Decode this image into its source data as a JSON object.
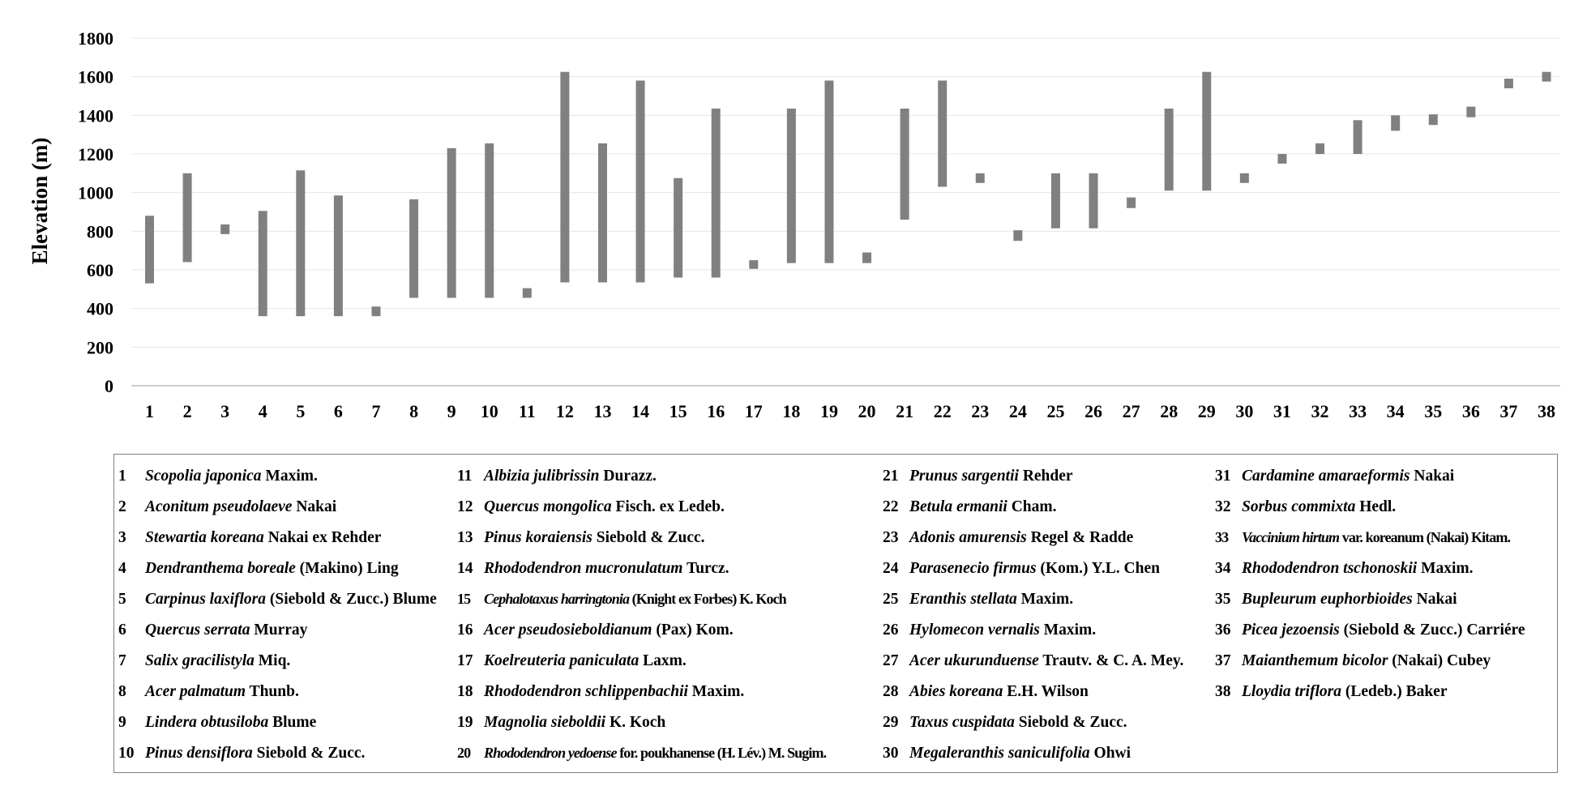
{
  "chart_data": {
    "type": "bar",
    "subtype": "floating-range",
    "ylabel": "Elevation (m)",
    "xlabel": "",
    "title": "",
    "ylim": [
      0,
      1800
    ],
    "yticks": [
      0,
      200,
      400,
      600,
      800,
      1000,
      1200,
      1400,
      1600,
      1800
    ],
    "grid": true,
    "bar_color": "#808080",
    "categories": [
      "1",
      "2",
      "3",
      "4",
      "5",
      "6",
      "7",
      "8",
      "9",
      "10",
      "11",
      "12",
      "13",
      "14",
      "15",
      "16",
      "17",
      "18",
      "19",
      "20",
      "21",
      "22",
      "23",
      "24",
      "25",
      "26",
      "27",
      "28",
      "29",
      "30",
      "31",
      "32",
      "33",
      "34",
      "35",
      "36",
      "37",
      "38"
    ],
    "ranges": [
      [
        530,
        880
      ],
      [
        640,
        1100
      ],
      [
        785,
        835
      ],
      [
        360,
        905
      ],
      [
        360,
        1115
      ],
      [
        360,
        985
      ],
      [
        360,
        410
      ],
      [
        455,
        965
      ],
      [
        455,
        1230
      ],
      [
        455,
        1255
      ],
      [
        455,
        505
      ],
      [
        535,
        1625
      ],
      [
        535,
        1255
      ],
      [
        535,
        1580
      ],
      [
        560,
        1075
      ],
      [
        560,
        1435
      ],
      [
        605,
        650
      ],
      [
        635,
        1435
      ],
      [
        635,
        1580
      ],
      [
        635,
        690
      ],
      [
        860,
        1435
      ],
      [
        1030,
        1580
      ],
      [
        1050,
        1100
      ],
      [
        750,
        805
      ],
      [
        815,
        1100
      ],
      [
        815,
        1100
      ],
      [
        920,
        975
      ],
      [
        1010,
        1435
      ],
      [
        1010,
        1625
      ],
      [
        1050,
        1100
      ],
      [
        1150,
        1200
      ],
      [
        1200,
        1255
      ],
      [
        1200,
        1375
      ],
      [
        1320,
        1400
      ],
      [
        1350,
        1405
      ],
      [
        1390,
        1445
      ],
      [
        1540,
        1590
      ],
      [
        1575,
        1625
      ]
    ]
  },
  "legend": {
    "columns": [
      [
        {
          "num": "1",
          "species": "Scopolia japonica",
          "author": "Maxim."
        },
        {
          "num": "2",
          "species": "Aconitum pseudolaeve",
          "author": "Nakai"
        },
        {
          "num": "3",
          "species": "Stewartia koreana",
          "author": "Nakai ex Rehder"
        },
        {
          "num": "4",
          "species": "Dendranthema boreale",
          "author": "(Makino) Ling"
        },
        {
          "num": "5",
          "species": "Carpinus laxiflora",
          "author": "(Siebold & Zucc.) Blume"
        },
        {
          "num": "6",
          "species": "Quercus serrata",
          "author": "Murray"
        },
        {
          "num": "7",
          "species": "Salix gracilistyla",
          "author": "Miq."
        },
        {
          "num": "8",
          "species": "Acer palmatum",
          "author": "Thunb."
        },
        {
          "num": "9",
          "species": "Lindera obtusiloba",
          "author": "Blume"
        },
        {
          "num": "10",
          "species": "Pinus densiflora",
          "author": "Siebold & Zucc."
        }
      ],
      [
        {
          "num": "11",
          "species": "Albizia julibrissin",
          "author": "Durazz."
        },
        {
          "num": "12",
          "species": "Quercus mongolica",
          "author": "Fisch. ex Ledeb."
        },
        {
          "num": "13",
          "species": "Pinus koraiensis",
          "author": "Siebold & Zucc."
        },
        {
          "num": "14",
          "species": "Rhododendron mucronulatum",
          "author": "Turcz."
        },
        {
          "num": "15",
          "species": "Cephalotaxus harringtonia",
          "author": "(Knight ex Forbes) K. Koch"
        },
        {
          "num": "16",
          "species": "Acer pseudosieboldianum",
          "author": "(Pax) Kom."
        },
        {
          "num": "17",
          "species": "Koelreuteria paniculata",
          "author": "Laxm."
        },
        {
          "num": "18",
          "species": "Rhododendron schlippenbachii",
          "author": "Maxim."
        },
        {
          "num": "19",
          "species": "Magnolia sieboldii",
          "author": "K. Koch"
        },
        {
          "num": "20",
          "species": "Rhododendron yedoense",
          "author": "for. poukhanense (H. Lév.) M. Sugim."
        }
      ],
      [
        {
          "num": "21",
          "species": "Prunus sargentii",
          "author": "Rehder"
        },
        {
          "num": "22",
          "species": "Betula ermanii",
          "author": "Cham."
        },
        {
          "num": "23",
          "species": "Adonis amurensis",
          "author": "Regel & Radde"
        },
        {
          "num": "24",
          "species": "Parasenecio firmus",
          "author": "(Kom.) Y.L. Chen"
        },
        {
          "num": "25",
          "species": "Eranthis stellata",
          "author": "Maxim."
        },
        {
          "num": "26",
          "species": "Hylomecon vernalis",
          "author": "Maxim."
        },
        {
          "num": "27",
          "species": "Acer ukurunduense",
          "author": "Trautv. & C. A. Mey."
        },
        {
          "num": "28",
          "species": "Abies koreana",
          "author": "E.H. Wilson"
        },
        {
          "num": "29",
          "species": "Taxus cuspidata",
          "author": "Siebold & Zucc."
        },
        {
          "num": "30",
          "species": "Megaleranthis saniculifolia",
          "author": "Ohwi"
        }
      ],
      [
        {
          "num": "31",
          "species": "Cardamine amaraeformis",
          "author": "Nakai"
        },
        {
          "num": "32",
          "species": "Sorbus commixta",
          "author": "Hedl."
        },
        {
          "num": "33",
          "species": "Vaccinium hirtum",
          "author": "var. koreanum (Nakai) Kitam."
        },
        {
          "num": "34",
          "species": "Rhododendron tschonoskii",
          "author": "Maxim."
        },
        {
          "num": "35",
          "species": "Bupleurum euphorbioides",
          "author": "Nakai"
        },
        {
          "num": "36",
          "species": "Picea jezoensis",
          "author": "(Siebold & Zucc.) Carriére"
        },
        {
          "num": "37",
          "species": "Maianthemum bicolor",
          "author": "(Nakai) Cubey"
        },
        {
          "num": "38",
          "species": "Lloydia triflora",
          "author": "(Ledeb.) Baker"
        }
      ]
    ]
  }
}
